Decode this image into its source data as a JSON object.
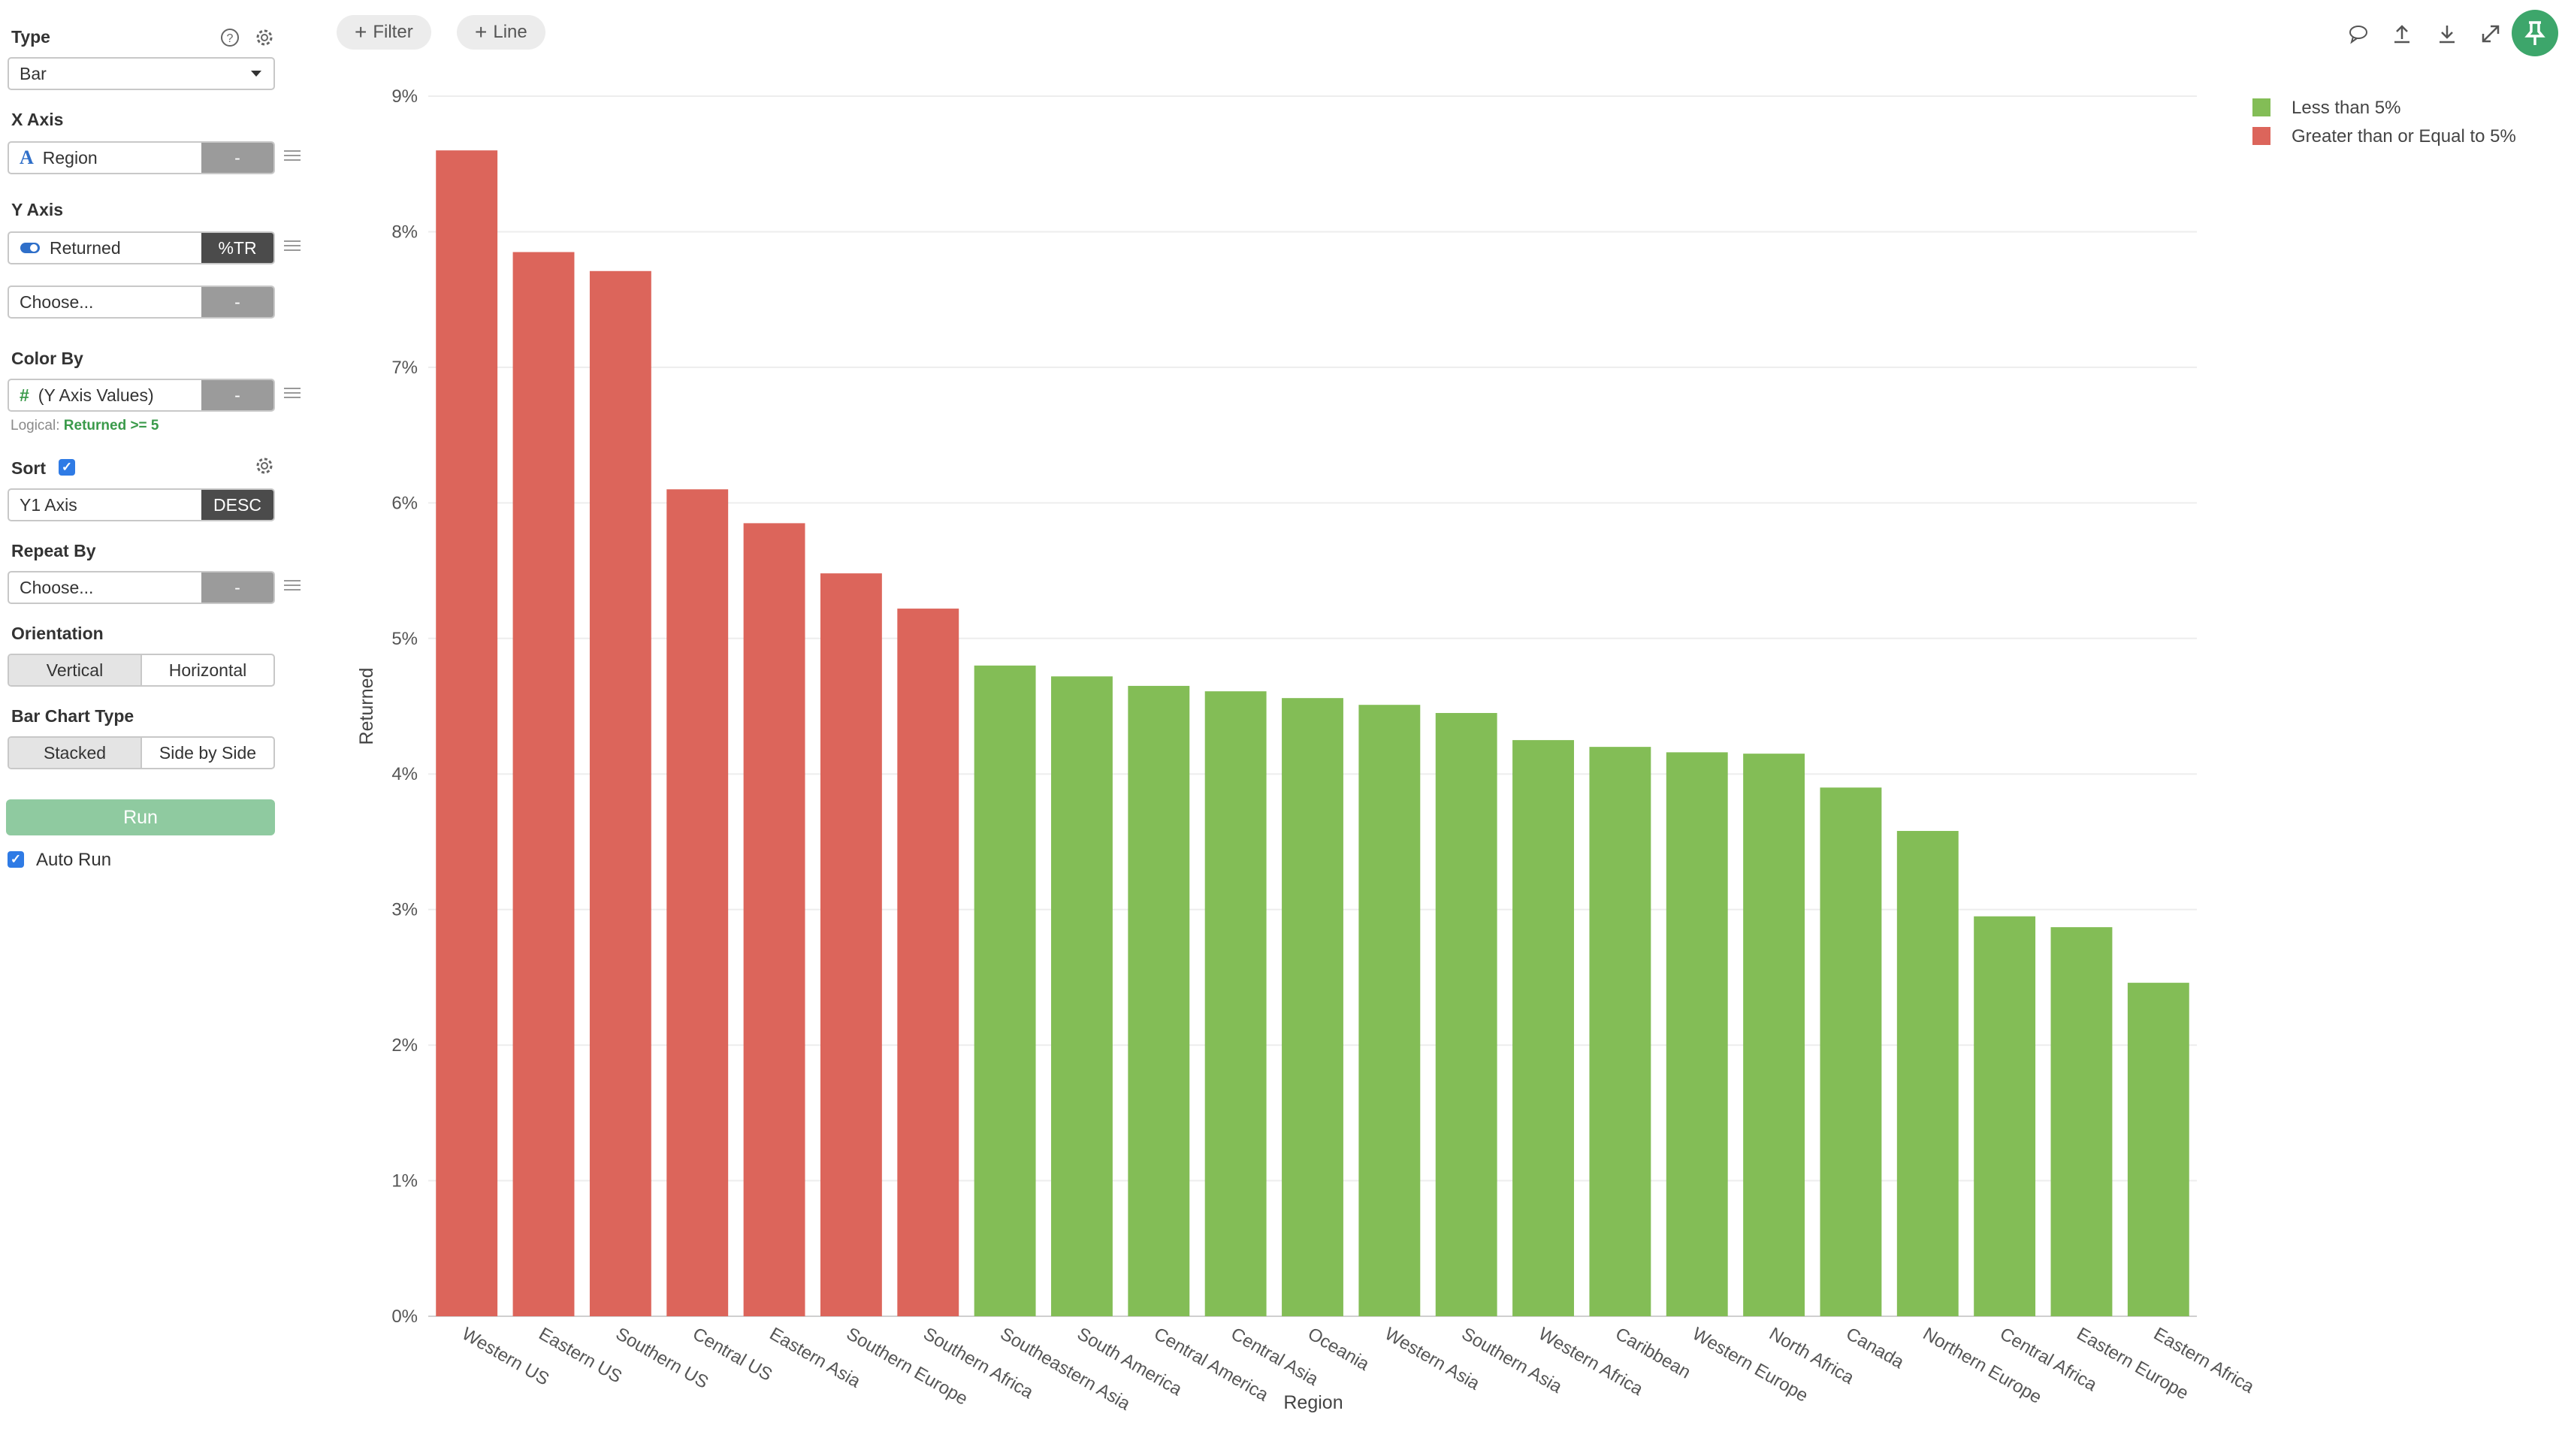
{
  "sidebar": {
    "type": {
      "label": "Type",
      "value": "Bar"
    },
    "x_axis": {
      "label": "X Axis",
      "value": "Region",
      "button": "-"
    },
    "y_axis": {
      "label": "Y Axis",
      "value": "Returned",
      "button": "%TR",
      "second_value": "Choose...",
      "second_button": "-"
    },
    "color_by": {
      "label": "Color By",
      "value": "(Y Axis Values)",
      "button": "-",
      "logical_label": "Logical:",
      "logical_value": "Returned >= 5"
    },
    "sort": {
      "label": "Sort",
      "value": "Y1 Axis",
      "button": "DESC"
    },
    "repeat_by": {
      "label": "Repeat By",
      "value": "Choose...",
      "button": "-"
    },
    "orientation": {
      "label": "Orientation",
      "options": [
        "Vertical",
        "Horizontal"
      ],
      "selected": "Vertical"
    },
    "bar_chart_type": {
      "label": "Bar Chart Type",
      "options": [
        "Stacked",
        "Side by Side"
      ],
      "selected": "Stacked"
    },
    "run_label": "Run",
    "auto_run_label": "Auto Run"
  },
  "toolbar": {
    "filter_label": "Filter",
    "line_label": "Line",
    "icons": [
      "comment-icon",
      "upload-icon",
      "download-icon",
      "expand-icon",
      "pin-icon"
    ]
  },
  "colors": {
    "green": "#83bd56",
    "red": "#dc655b",
    "run": "#8fcaa0",
    "pin": "#3da66b"
  },
  "chart_data": {
    "type": "bar",
    "xlabel": "Region",
    "ylabel": "Returned",
    "ylim": [
      0,
      9
    ],
    "yticks": [
      "0%",
      "1%",
      "2%",
      "3%",
      "4%",
      "5%",
      "6%",
      "7%",
      "8%",
      "9%"
    ],
    "grid": true,
    "legend_position": "top-right",
    "legend": [
      {
        "name": "Less than 5%",
        "color": "#83bd56"
      },
      {
        "name": "Greater than or Equal to 5%",
        "color": "#dc655b"
      }
    ],
    "categories": [
      "Western US",
      "Eastern US",
      "Southern US",
      "Central US",
      "Eastern Asia",
      "Southern Europe",
      "Southern Africa",
      "Southeastern Asia",
      "South America",
      "Central America",
      "Central Asia",
      "Oceania",
      "Western Asia",
      "Southern Asia",
      "Western Africa",
      "Caribbean",
      "Western Europe",
      "North Africa",
      "Canada",
      "Northern Europe",
      "Central Africa",
      "Eastern Europe",
      "Eastern Africa"
    ],
    "values": [
      8.6,
      7.85,
      7.71,
      6.1,
      5.85,
      5.48,
      5.22,
      4.8,
      4.72,
      4.65,
      4.61,
      4.56,
      4.51,
      4.45,
      4.25,
      4.2,
      4.16,
      4.15,
      3.9,
      3.58,
      2.95,
      2.87,
      2.46
    ]
  }
}
